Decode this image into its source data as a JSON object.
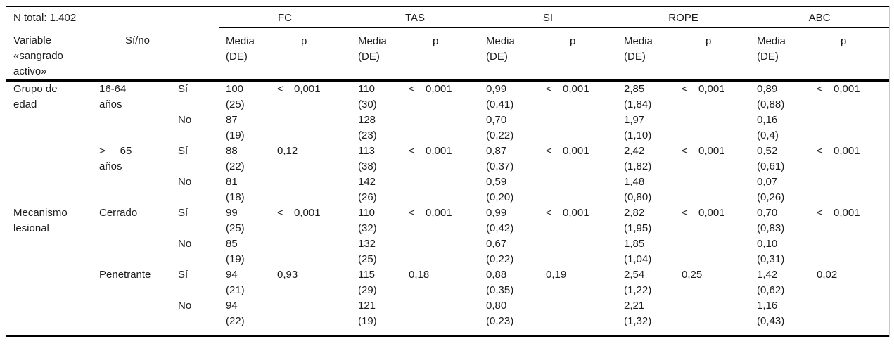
{
  "colors": {
    "rule": "#000000",
    "side_border": "#c9c9c9",
    "text": "#1c1c1c",
    "background": "#ffffff"
  },
  "table": {
    "n_total": "N total: 1.402",
    "variable_header": "Variable\n«sangrado\nactivo»",
    "yesno_header": "Sí/no",
    "groups": [
      "FC",
      "TAS",
      "SI",
      "ROPE",
      "ABC"
    ],
    "media_header": "Media\n(DE)",
    "p_header": "p",
    "rows": [
      {
        "variable": "Grupo de\nedad",
        "category": "16-64\naños",
        "yesno": "Sí",
        "cells": [
          {
            "media": "100\n(25)",
            "lt": "<",
            "p": "0,001"
          },
          {
            "media": "110\n(30)",
            "lt": "<",
            "p": "0,001"
          },
          {
            "media": "0,99\n(0,41)",
            "lt": "<",
            "p": "0,001"
          },
          {
            "media": "2,85\n(1,84)",
            "lt": "<",
            "p": "0,001"
          },
          {
            "media": "0,89\n(0,88)",
            "lt": "<",
            "p": "0,001"
          }
        ]
      },
      {
        "variable": "",
        "category": "",
        "yesno": "No",
        "cells": [
          {
            "media": "87\n(19)",
            "lt": "",
            "p": ""
          },
          {
            "media": "128\n(23)",
            "lt": "",
            "p": ""
          },
          {
            "media": "0,70\n(0,22)",
            "lt": "",
            "p": ""
          },
          {
            "media": "1,97\n(1,10)",
            "lt": "",
            "p": ""
          },
          {
            "media": "0,16\n(0,4)",
            "lt": "",
            "p": ""
          }
        ]
      },
      {
        "variable": "",
        "category": ">     65\naños",
        "yesno": "Sí",
        "cells": [
          {
            "media": "88\n(22)",
            "lt": "",
            "p": "0,12"
          },
          {
            "media": "113\n(38)",
            "lt": "<",
            "p": "0,001"
          },
          {
            "media": "0,87\n(0,37)",
            "lt": "<",
            "p": "0,001"
          },
          {
            "media": "2,42\n(1,82)",
            "lt": "<",
            "p": "0,001"
          },
          {
            "media": "0,52\n(0,61)",
            "lt": "<",
            "p": "0,001"
          }
        ]
      },
      {
        "variable": "",
        "category": "",
        "yesno": "No",
        "cells": [
          {
            "media": "81\n(18)",
            "lt": "",
            "p": ""
          },
          {
            "media": "142\n(26)",
            "lt": "",
            "p": ""
          },
          {
            "media": "0,59\n(0,20)",
            "lt": "",
            "p": ""
          },
          {
            "media": "1,48\n(0,80)",
            "lt": "",
            "p": ""
          },
          {
            "media": "0,07\n(0,26)",
            "lt": "",
            "p": ""
          }
        ]
      },
      {
        "variable": "Mecanismo\nlesional",
        "category": "Cerrado",
        "yesno": "Sí",
        "cells": [
          {
            "media": "99\n(25)",
            "lt": "<",
            "p": "0,001"
          },
          {
            "media": "110\n(32)",
            "lt": "<",
            "p": "0,001"
          },
          {
            "media": "0,99\n(0,42)",
            "lt": "<",
            "p": "0,001"
          },
          {
            "media": "2,82\n(1,95)",
            "lt": "<",
            "p": "0,001"
          },
          {
            "media": "0,70\n(0,83)",
            "lt": "<",
            "p": "0,001"
          }
        ]
      },
      {
        "variable": "",
        "category": "",
        "yesno": "No",
        "cells": [
          {
            "media": "85\n(19)",
            "lt": "",
            "p": ""
          },
          {
            "media": "132\n(25)",
            "lt": "",
            "p": ""
          },
          {
            "media": "0,67\n(0,22)",
            "lt": "",
            "p": ""
          },
          {
            "media": "1,85\n(1,04)",
            "lt": "",
            "p": ""
          },
          {
            "media": "0,10\n(0,31)",
            "lt": "",
            "p": ""
          }
        ]
      },
      {
        "variable": "",
        "category": "Penetrante",
        "yesno": "Sí",
        "cells": [
          {
            "media": "94\n(21)",
            "lt": "",
            "p": "0,93"
          },
          {
            "media": "115\n(29)",
            "lt": "",
            "p": "0,18"
          },
          {
            "media": "0,88\n(0,35)",
            "lt": "",
            "p": "0,19"
          },
          {
            "media": "2,54\n(1,22)",
            "lt": "",
            "p": "0,25"
          },
          {
            "media": "1,42\n(0,62)",
            "lt": "",
            "p": "0,02"
          }
        ]
      },
      {
        "variable": "",
        "category": "",
        "yesno": "No",
        "cells": [
          {
            "media": "94\n(22)",
            "lt": "",
            "p": ""
          },
          {
            "media": "121\n(19)",
            "lt": "",
            "p": ""
          },
          {
            "media": "0,80\n(0,23)",
            "lt": "",
            "p": ""
          },
          {
            "media": "2,21\n(1,32)",
            "lt": "",
            "p": ""
          },
          {
            "media": "1,16\n(0,43)",
            "lt": "",
            "p": ""
          }
        ]
      }
    ]
  }
}
